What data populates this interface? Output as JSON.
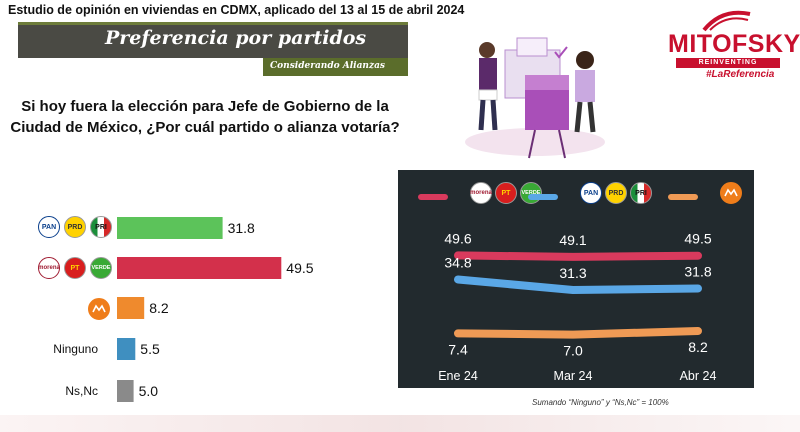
{
  "header": {
    "subtitle": "Estudio de opinión en viviendas en CDMX, aplicado del 13 al 15 de abril 2024",
    "title": "Preferencia por partidos",
    "note": "Considerando Alianzas"
  },
  "question": "Si hoy fuera la elección para Jefe de Gobierno de la Ciudad de México, ¿Por cuál partido o alianza votaría?",
  "brand": {
    "name": "MITOFSKY",
    "tagline": "REINVENTING RESEARCH",
    "hashtag": "#LaReferencia",
    "color": "#c8102e"
  },
  "party_logos": {
    "pan": "PAN",
    "prd": "PRD",
    "pri": "PRI",
    "morena": "morena",
    "pt": "PT",
    "verde": "VERDE"
  },
  "chart_data": [
    {
      "type": "bar",
      "orientation": "horizontal",
      "categories": [
        "PAN-PRD-PRI",
        "MORENA-PT-VERDE",
        "MC",
        "Ninguno",
        "Ns,Nc"
      ],
      "labels": [
        "",
        "",
        "",
        "Ninguno",
        "Ns,Nc"
      ],
      "values": [
        31.8,
        49.5,
        8.2,
        5.5,
        5.0
      ],
      "colors": [
        "#5cc35a",
        "#d3304b",
        "#ef8a2d",
        "#3f8fc0",
        "#8a8a8a"
      ],
      "xlim": [
        0,
        50
      ]
    },
    {
      "type": "line",
      "x": [
        "Ene 24",
        "Mar 24",
        "Abr 24"
      ],
      "series": [
        {
          "values": [
            49.6,
            49.1,
            49.5
          ],
          "color": "#d93a5d"
        },
        {
          "values": [
            34.8,
            31.3,
            31.8
          ],
          "color": "#5aa7e6"
        },
        {
          "values": [
            7.4,
            7.0,
            8.2
          ],
          "color": "#ef9a55"
        }
      ],
      "legend_position": "top",
      "background": "#222a2e"
    }
  ],
  "footnote": "Sumando “Ninguno” y “Ns,Nc” = 100%"
}
